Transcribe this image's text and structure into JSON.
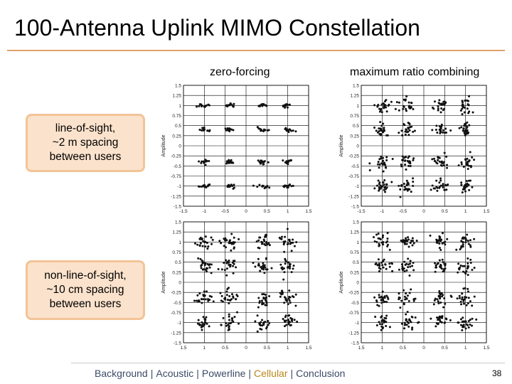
{
  "slide": {
    "title": "100-Antenna Uplink MIMO Constellation",
    "column_headers": [
      "zero-forcing",
      "maximum ratio combining"
    ],
    "row_labels": [
      "line-of-sight,\n~2 m spacing\nbetween users",
      "non-line-of-sight,\n~10 cm spacing\nbetween users"
    ],
    "page_number": "38"
  },
  "footer": {
    "nav": [
      {
        "label": "Background",
        "active": false
      },
      {
        "label": "Acoustic",
        "active": false
      },
      {
        "label": "Powerline",
        "active": false
      },
      {
        "label": "Cellular",
        "active": true
      },
      {
        "label": "Conclusion",
        "active": false
      }
    ],
    "separator": "|",
    "active_color": "#b8871b",
    "text_color": "#3c4a66"
  },
  "chart_data": [
    {
      "type": "scatter",
      "id": "los-zf",
      "xlabel": "",
      "ylabel": "Amplitude",
      "xlim": [
        -1.5,
        1.5
      ],
      "ylim": [
        -1.5,
        1.5
      ],
      "x_ticks": [
        "-1.5",
        "-1",
        "-0.5",
        "0",
        "0.5",
        "1",
        "1.5"
      ],
      "y_ticks": [
        "1.5",
        "1.25",
        "1",
        "0.75",
        "0.5",
        "0.25",
        "0",
        "-0.25",
        "-0.5",
        "-0.75",
        "-1",
        "-1.25",
        "-1.5"
      ],
      "constellation": [
        -1,
        -0.4,
        0.4,
        1
      ],
      "spread": 0.04,
      "grid": true
    },
    {
      "type": "scatter",
      "id": "los-mrc",
      "xlabel": "",
      "ylabel": "Amplitude",
      "xlim": [
        -1.5,
        1.5
      ],
      "ylim": [
        -1.5,
        1.5
      ],
      "x_ticks": [
        "-1.5",
        "-1",
        "-0.5",
        "0",
        "0.5",
        "1",
        "1.5"
      ],
      "y_ticks": [
        "1.5",
        "1.25",
        "1",
        "0.75",
        "0.5",
        "0.25",
        "0",
        "-0.25",
        "-0.5",
        "-0.75",
        "-1",
        "-1.25",
        "-1.5"
      ],
      "constellation": [
        -1,
        -0.4,
        0.4,
        1
      ],
      "spread": 0.09,
      "grid": true
    },
    {
      "type": "scatter",
      "id": "nlos-zf",
      "xlabel": "",
      "ylabel": "Amplitude",
      "xlim": [
        -1.5,
        1.5
      ],
      "ylim": [
        -1.5,
        1.5
      ],
      "x_ticks": [
        "1.5",
        "1",
        "0.5",
        "0",
        "0.5",
        "1",
        "1.5"
      ],
      "y_ticks": [
        "1.5",
        "1.25",
        "1",
        "0.75",
        "0.5",
        "0.25",
        "0",
        "-0.25",
        "-0.5",
        "-0.75",
        "-1",
        "-1.25",
        "-1.5"
      ],
      "constellation": [
        -1,
        -0.4,
        0.4,
        1
      ],
      "spread": 0.1,
      "grid": true
    },
    {
      "type": "scatter",
      "id": "nlos-mrc",
      "xlabel": "",
      "ylabel": "Amplitude",
      "xlim": [
        -1.5,
        1.5
      ],
      "ylim": [
        -1.5,
        1.5
      ],
      "x_ticks": [
        "1.5",
        "1",
        "0.5",
        "0",
        "0.5",
        "1",
        "1.5"
      ],
      "y_ticks": [
        "1.5",
        "1.25",
        "1",
        "0.75",
        "0.5",
        "0.25",
        "0",
        "-0.25",
        "-0.5",
        "-0.75",
        "-1",
        "-1.25",
        "-1.5"
      ],
      "constellation": [
        -1,
        -0.4,
        0.4,
        1
      ],
      "spread": 0.1,
      "grid": true
    }
  ]
}
